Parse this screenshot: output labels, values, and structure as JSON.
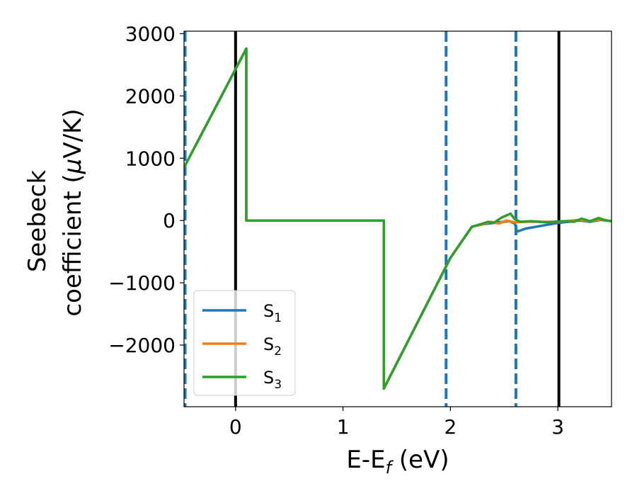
{
  "chart_data": {
    "type": "line",
    "xlabel_main": "E-E",
    "xlabel_sub": "f",
    "xlabel_unit": " (eV)",
    "ylabel_line1": "Seebeck",
    "ylabel_line2_text": "coefficient  (",
    "ylabel_mu": "μ",
    "ylabel_unit": "V/K)",
    "xlim": [
      -0.48,
      3.5
    ],
    "ylim": [
      -2990,
      3040
    ],
    "xticks": [
      0,
      1,
      2,
      3
    ],
    "xtick_labels": [
      "0",
      "1",
      "2",
      "3"
    ],
    "yticks": [
      -2000,
      -1000,
      0,
      1000,
      2000,
      3000
    ],
    "ytick_labels": [
      "−2000",
      "−1000",
      "0",
      "1000",
      "2000",
      "3000"
    ],
    "vlines": [
      {
        "x": -0.47,
        "color": "#1f77b4",
        "style": "dashed"
      },
      {
        "x": 0,
        "color": "#000000",
        "style": "solid"
      },
      {
        "x": 1.96,
        "color": "#1f77b4",
        "style": "dashed"
      },
      {
        "x": 2.61,
        "color": "#1f77b4",
        "style": "dashed"
      },
      {
        "x": 3.01,
        "color": "#000000",
        "style": "solid"
      }
    ],
    "legend_position": "lower-left",
    "series": [
      {
        "name": "S",
        "sub": "1",
        "color": "#1f77b4",
        "points": [
          [
            -0.48,
            850
          ],
          [
            0.1,
            2760
          ],
          [
            0.1,
            0
          ],
          [
            1.38,
            0
          ],
          [
            1.38,
            -2700
          ],
          [
            2.0,
            -600
          ],
          [
            2.2,
            -100
          ],
          [
            2.3,
            -60
          ],
          [
            2.45,
            -30
          ],
          [
            2.55,
            -10
          ],
          [
            2.6,
            -50
          ],
          [
            2.62,
            -180
          ],
          [
            2.7,
            -130
          ],
          [
            2.9,
            -70
          ],
          [
            3.0,
            -40
          ],
          [
            3.1,
            -20
          ],
          [
            3.2,
            0
          ],
          [
            3.3,
            -20
          ],
          [
            3.4,
            10
          ],
          [
            3.5,
            -10
          ]
        ]
      },
      {
        "name": "S",
        "sub": "2",
        "color": "#ff7f0e",
        "points": [
          [
            -0.48,
            850
          ],
          [
            0.1,
            2760
          ],
          [
            0.1,
            0
          ],
          [
            1.38,
            0
          ],
          [
            1.38,
            -2700
          ],
          [
            2.0,
            -600
          ],
          [
            2.2,
            -100
          ],
          [
            2.3,
            -60
          ],
          [
            2.38,
            -20
          ],
          [
            2.45,
            -50
          ],
          [
            2.52,
            0
          ],
          [
            2.6,
            -30
          ],
          [
            2.7,
            -20
          ],
          [
            2.9,
            -20
          ],
          [
            3.0,
            -20
          ],
          [
            3.2,
            10
          ],
          [
            3.3,
            -10
          ],
          [
            3.4,
            20
          ],
          [
            3.5,
            -10
          ]
        ]
      },
      {
        "name": "S",
        "sub": "3",
        "color": "#2ca02c",
        "points": [
          [
            -0.48,
            850
          ],
          [
            0.1,
            2760
          ],
          [
            0.1,
            0
          ],
          [
            1.38,
            0
          ],
          [
            1.38,
            -2700
          ],
          [
            2.0,
            -600
          ],
          [
            2.2,
            -100
          ],
          [
            2.3,
            -50
          ],
          [
            2.35,
            -20
          ],
          [
            2.4,
            -40
          ],
          [
            2.48,
            50
          ],
          [
            2.56,
            110
          ],
          [
            2.6,
            20
          ],
          [
            2.65,
            -20
          ],
          [
            2.75,
            -10
          ],
          [
            2.9,
            -30
          ],
          [
            3.05,
            -10
          ],
          [
            3.15,
            -20
          ],
          [
            3.22,
            30
          ],
          [
            3.3,
            -10
          ],
          [
            3.38,
            40
          ],
          [
            3.45,
            0
          ],
          [
            3.5,
            -10
          ]
        ]
      }
    ]
  }
}
